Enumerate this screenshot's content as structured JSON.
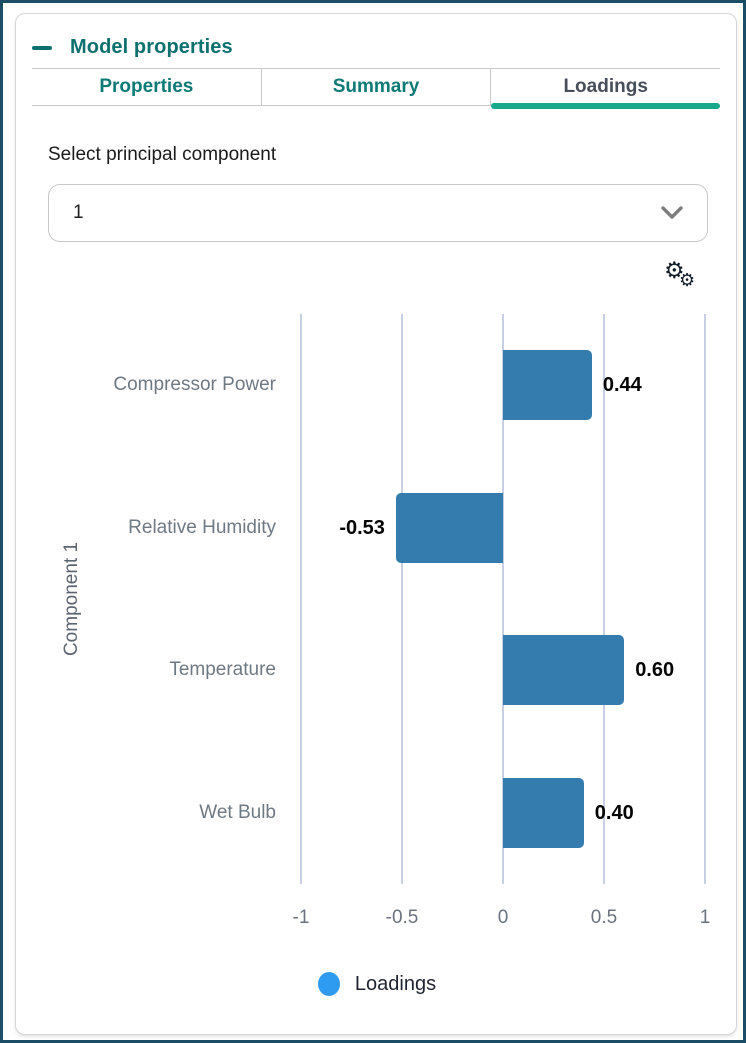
{
  "panel": {
    "title": "Model properties",
    "collapse_icon": "minus-dash"
  },
  "tabs": [
    {
      "label": "Properties",
      "active": false
    },
    {
      "label": "Summary",
      "active": false
    },
    {
      "label": "Loadings",
      "active": true
    }
  ],
  "component_selector": {
    "label": "Select principal component",
    "value": "1"
  },
  "chart_toolbar": {
    "settings_icon": "double-gear",
    "gear_glyph": "⚙"
  },
  "chart_data": {
    "type": "bar",
    "orientation": "horizontal",
    "categories": [
      "Compressor Power",
      "Relative Humidity",
      "Temperature",
      "Wet Bulb"
    ],
    "values": [
      0.44,
      -0.53,
      0.6,
      0.4
    ],
    "value_labels": [
      "0.44",
      "-0.53",
      "0.60",
      "0.40"
    ],
    "series_name": "Loadings",
    "ylabel": "Component 1",
    "xlim": [
      -1,
      1
    ],
    "x_ticks": [
      -1,
      -0.5,
      0,
      0.5,
      1
    ],
    "x_tick_labels": [
      "-1",
      "-0.5",
      "0",
      "0.5",
      "1"
    ],
    "grid": true,
    "legend_position": "bottom",
    "bar_color": "#337cad",
    "legend_dot_color": "#2e9bf0"
  },
  "colors": {
    "accent_teal": "#0e716f",
    "active_tab_underline": "#17a88d",
    "active_tab_text": "#474e5a",
    "frame_border": "#1c4d66",
    "gridline": "#c7d0e2",
    "bar": "#337cad",
    "legend_dot": "#2e9bf0"
  }
}
